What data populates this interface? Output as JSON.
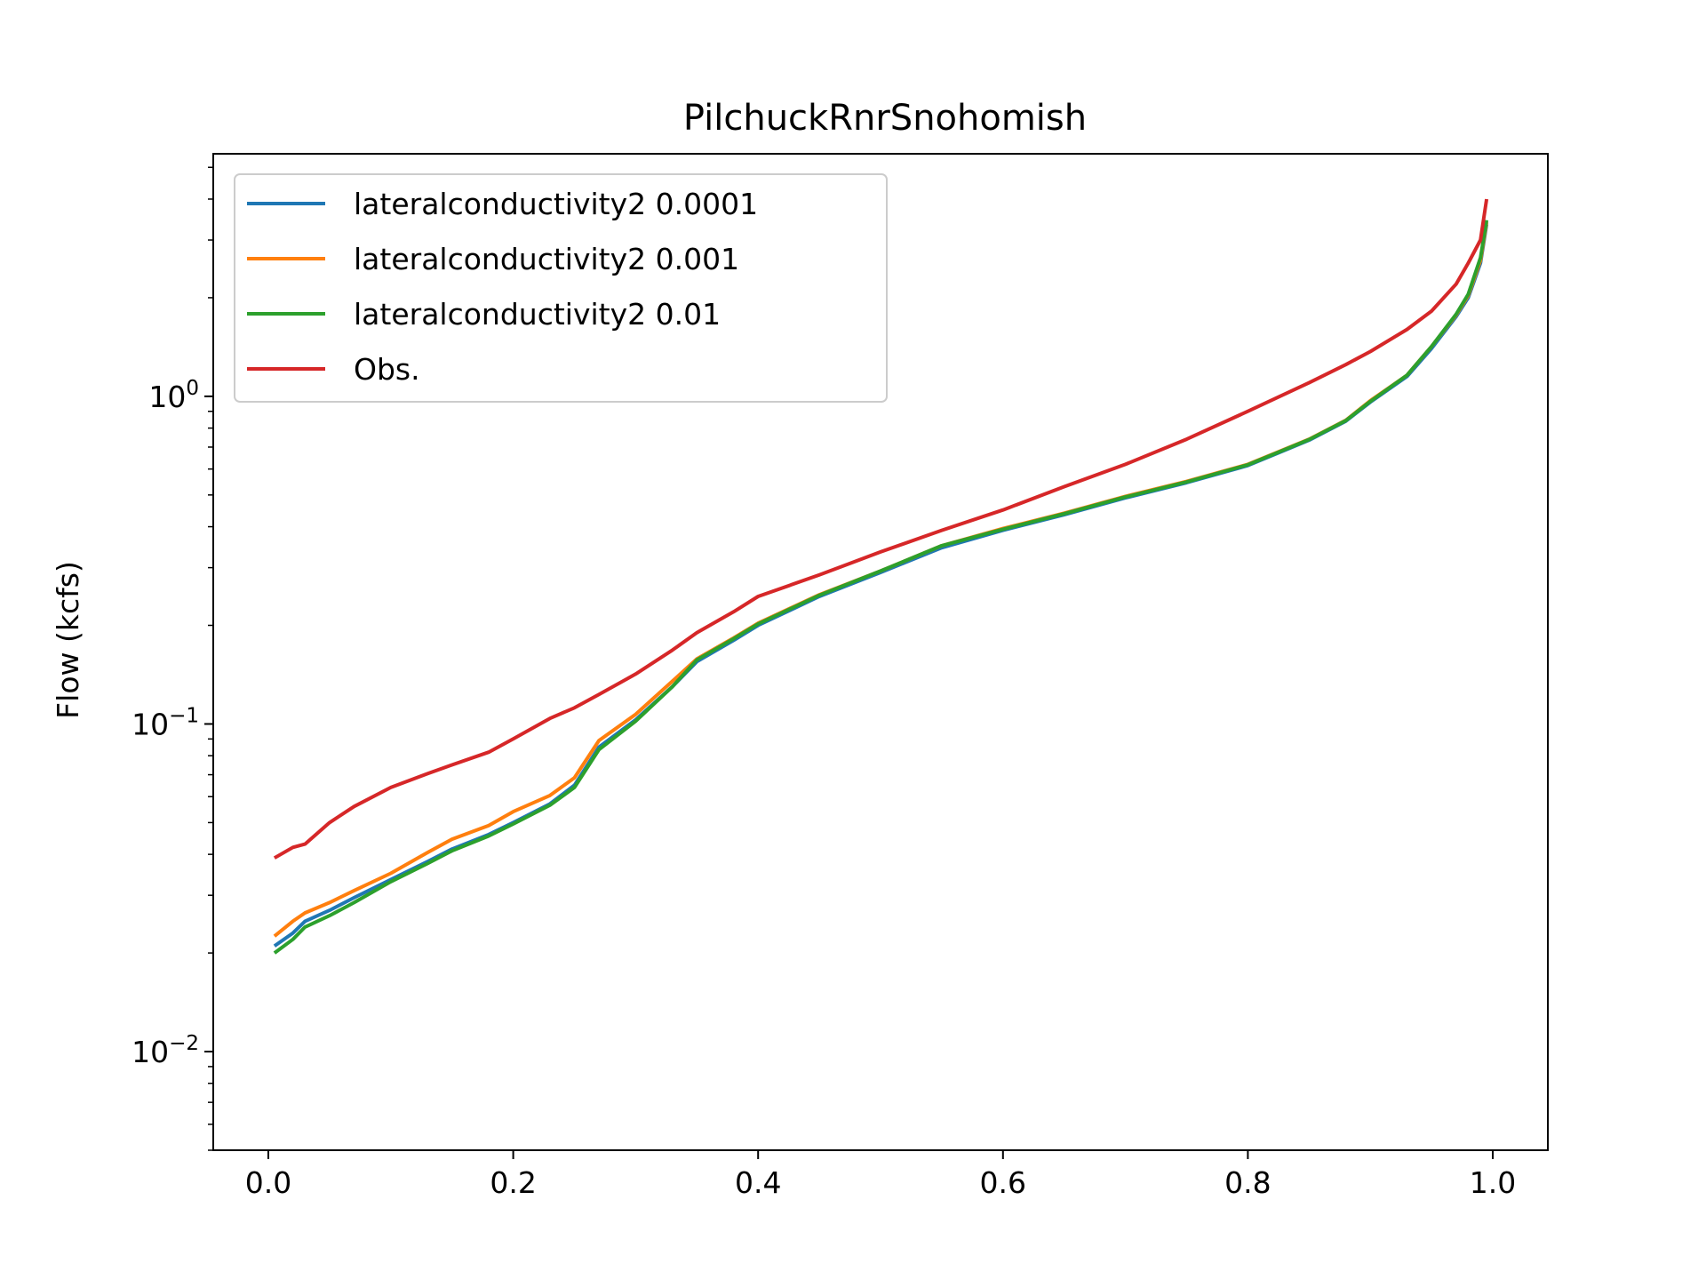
{
  "chart_data": {
    "type": "line",
    "title": "PilchuckRnrSnohomish",
    "xlabel": "",
    "ylabel": "Flow (kcfs)",
    "yscale": "log",
    "xlim": [
      -0.045,
      1.045
    ],
    "ylim": [
      0.005,
      5.5
    ],
    "xticks": [
      0.0,
      0.2,
      0.4,
      0.6,
      0.8,
      1.0
    ],
    "xtick_labels": [
      "0.0",
      "0.2",
      "0.4",
      "0.6",
      "0.8",
      "1.0"
    ],
    "yticks": [
      {
        "value": 1.0,
        "base": "10",
        "exp": "0"
      },
      {
        "value": 0.1,
        "base": "10",
        "exp": "−1"
      },
      {
        "value": 0.01,
        "base": "10",
        "exp": "−2"
      }
    ],
    "legend_position": "upper-left",
    "x": [
      0.005,
      0.02,
      0.03,
      0.05,
      0.07,
      0.1,
      0.13,
      0.15,
      0.18,
      0.2,
      0.23,
      0.25,
      0.27,
      0.3,
      0.33,
      0.35,
      0.38,
      0.4,
      0.45,
      0.5,
      0.55,
      0.6,
      0.65,
      0.7,
      0.75,
      0.8,
      0.85,
      0.88,
      0.9,
      0.93,
      0.95,
      0.97,
      0.98,
      0.99,
      0.995
    ],
    "series": [
      {
        "name": "lateralconductivity2 0.0001",
        "color": "#1f77b4",
        "values": [
          0.021,
          0.023,
          0.025,
          0.027,
          0.0295,
          0.0335,
          0.038,
          0.0415,
          0.046,
          0.05,
          0.057,
          0.065,
          0.085,
          0.103,
          0.13,
          0.155,
          0.18,
          0.2,
          0.245,
          0.29,
          0.345,
          0.39,
          0.435,
          0.49,
          0.545,
          0.615,
          0.735,
          0.84,
          0.96,
          1.15,
          1.4,
          1.75,
          2.0,
          2.55,
          3.35
        ]
      },
      {
        "name": "lateralconductivity2 0.001",
        "color": "#ff7f0e",
        "values": [
          0.0225,
          0.025,
          0.0265,
          0.0285,
          0.031,
          0.035,
          0.0405,
          0.0445,
          0.049,
          0.054,
          0.0605,
          0.0685,
          0.089,
          0.107,
          0.135,
          0.158,
          0.183,
          0.203,
          0.248,
          0.293,
          0.35,
          0.395,
          0.44,
          0.495,
          0.55,
          0.62,
          0.74,
          0.845,
          0.97,
          1.16,
          1.42,
          1.77,
          2.03,
          2.6,
          3.4
        ]
      },
      {
        "name": "lateralconductivity2 0.01",
        "color": "#2ca02c",
        "values": [
          0.02,
          0.022,
          0.024,
          0.026,
          0.0285,
          0.033,
          0.0375,
          0.041,
          0.0455,
          0.0495,
          0.0565,
          0.064,
          0.0835,
          0.102,
          0.13,
          0.157,
          0.182,
          0.202,
          0.247,
          0.293,
          0.35,
          0.393,
          0.438,
          0.493,
          0.548,
          0.618,
          0.738,
          0.843,
          0.965,
          1.16,
          1.42,
          1.78,
          2.05,
          2.65,
          3.45
        ]
      },
      {
        "name": "Obs.",
        "color": "#d62728",
        "values": [
          0.039,
          0.042,
          0.043,
          0.05,
          0.056,
          0.064,
          0.0705,
          0.075,
          0.082,
          0.09,
          0.104,
          0.112,
          0.123,
          0.142,
          0.168,
          0.19,
          0.22,
          0.245,
          0.285,
          0.335,
          0.39,
          0.45,
          0.53,
          0.62,
          0.74,
          0.9,
          1.1,
          1.25,
          1.37,
          1.6,
          1.82,
          2.2,
          2.55,
          3.0,
          4.0
        ]
      }
    ]
  }
}
